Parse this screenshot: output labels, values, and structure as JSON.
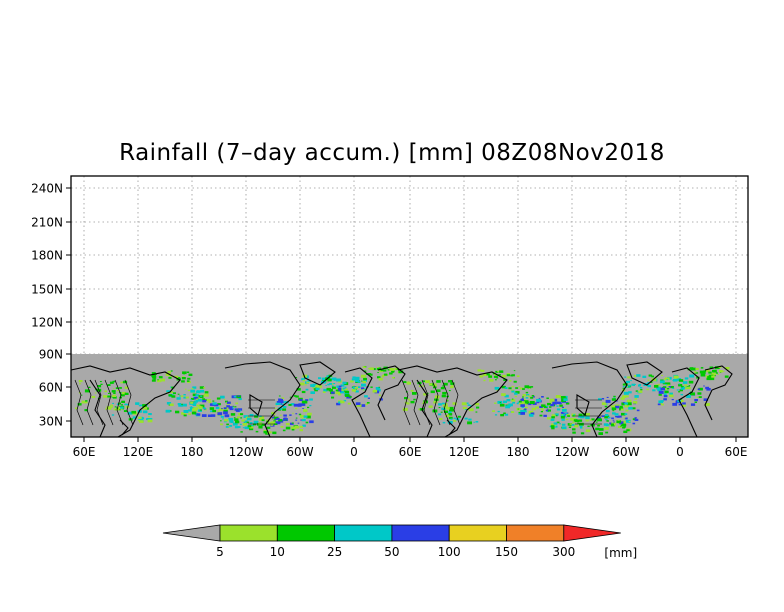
{
  "title": "Rainfall (7–day accum.) [mm] 08Z08Nov2018",
  "map": {
    "y_labels": [
      "240N",
      "210N",
      "180N",
      "150N",
      "120N",
      "90N",
      "60N",
      "30N"
    ],
    "x_labels": [
      "60E",
      "120E",
      "180",
      "120W",
      "60W",
      "0",
      "60E",
      "120E",
      "180",
      "120W",
      "60W",
      "0",
      "60E"
    ],
    "no_data_color": "#a9a9a9",
    "background_color": "#ffffff",
    "gridlines": true
  },
  "legend": {
    "unit": "[mm]",
    "ticks": [
      "5",
      "10",
      "25",
      "50",
      "100",
      "150",
      "300"
    ],
    "colors": [
      "#a9a9a9",
      "#9be12c",
      "#00c800",
      "#00c8c8",
      "#2a3ee6",
      "#e8d020",
      "#f08028",
      "#f02828"
    ]
  }
}
